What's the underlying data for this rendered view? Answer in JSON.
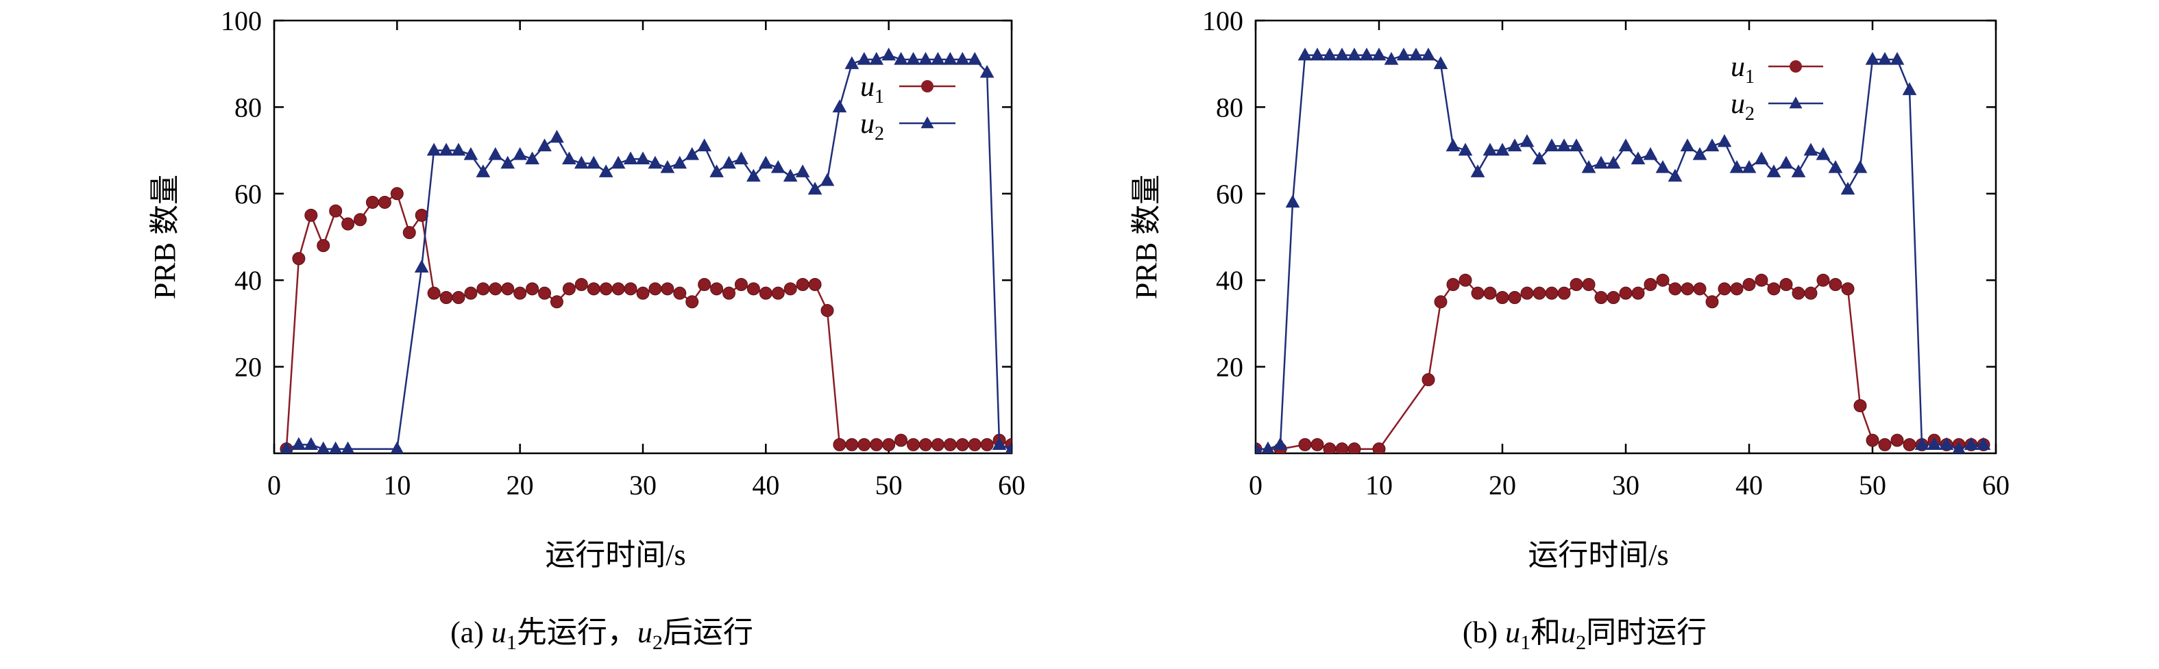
{
  "chart_data": [
    {
      "type": "line",
      "caption": {
        "prefix": "(a) ",
        "parts": [
          {
            "text": "u",
            "italic": true
          },
          {
            "text": "1",
            "sub": true
          },
          {
            "text": "先运行，"
          },
          {
            "text": "u",
            "italic": true
          },
          {
            "text": "2",
            "sub": true
          },
          {
            "text": "后运行"
          }
        ]
      },
      "xlabel": "运行时间/s",
      "ylabel": "PRB 数量",
      "xlim": [
        0,
        60
      ],
      "ylim": [
        0,
        100
      ],
      "xticks": [
        0,
        10,
        20,
        30,
        40,
        50,
        60
      ],
      "yticks": [
        20,
        40,
        60,
        80,
        100
      ],
      "legend_position": "top-left",
      "series": [
        {
          "name": "u1",
          "name_main": "u",
          "name_sub": "1",
          "color": "#8b1c24",
          "marker": "circle",
          "x": [
            1,
            2,
            3,
            4,
            5,
            6,
            7,
            8,
            9,
            10,
            11,
            12,
            13,
            14,
            15,
            16,
            17,
            18,
            19,
            20,
            21,
            22,
            23,
            24,
            25,
            26,
            27,
            28,
            29,
            30,
            31,
            32,
            33,
            34,
            35,
            36,
            37,
            38,
            39,
            40,
            41,
            42,
            43,
            44,
            45,
            46,
            47,
            48,
            49,
            50,
            51,
            52,
            53,
            54,
            55,
            56,
            57,
            58,
            59,
            60
          ],
          "y": [
            1,
            45,
            55,
            48,
            56,
            53,
            54,
            58,
            58,
            60,
            51,
            55,
            37,
            36,
            36,
            37,
            38,
            38,
            38,
            37,
            38,
            37,
            35,
            38,
            39,
            38,
            38,
            38,
            38,
            37,
            38,
            38,
            37,
            35,
            39,
            38,
            37,
            39,
            38,
            37,
            37,
            38,
            39,
            39,
            33,
            2,
            2,
            2,
            2,
            2,
            3,
            2,
            2,
            2,
            2,
            2,
            2,
            2,
            3,
            2
          ]
        },
        {
          "name": "u2",
          "name_main": "u",
          "name_sub": "2",
          "color": "#1f2e7a",
          "marker": "triangle",
          "x": [
            1,
            2,
            3,
            4,
            5,
            6,
            10,
            12,
            13,
            14,
            15,
            16,
            17,
            18,
            19,
            20,
            21,
            22,
            23,
            24,
            25,
            26,
            27,
            28,
            29,
            30,
            31,
            32,
            33,
            34,
            35,
            36,
            37,
            38,
            39,
            40,
            41,
            42,
            43,
            44,
            45,
            46,
            47,
            48,
            49,
            50,
            51,
            52,
            53,
            54,
            55,
            56,
            57,
            58,
            59,
            60
          ],
          "y": [
            1,
            2,
            2,
            1,
            1,
            1,
            1,
            43,
            70,
            70,
            70,
            69,
            65,
            69,
            67,
            69,
            68,
            71,
            73,
            68,
            67,
            67,
            65,
            67,
            68,
            68,
            67,
            66,
            67,
            69,
            71,
            65,
            67,
            68,
            64,
            67,
            66,
            64,
            65,
            61,
            63,
            80,
            90,
            91,
            91,
            92,
            91,
            91,
            91,
            91,
            91,
            91,
            91,
            88,
            2,
            1
          ]
        }
      ]
    },
    {
      "type": "line",
      "caption": {
        "prefix": "(b) ",
        "parts": [
          {
            "text": "u",
            "italic": true
          },
          {
            "text": "1",
            "sub": true
          },
          {
            "text": "和"
          },
          {
            "text": "u",
            "italic": true
          },
          {
            "text": "2",
            "sub": true
          },
          {
            "text": "同时运行"
          }
        ]
      },
      "xlabel": "运行时间/s",
      "ylabel": "PRB 数量",
      "xlim": [
        0,
        60
      ],
      "ylim": [
        0,
        100
      ],
      "xticks": [
        0,
        10,
        20,
        30,
        40,
        50,
        60
      ],
      "yticks": [
        20,
        40,
        60,
        80,
        100
      ],
      "legend_position": "top-right",
      "series": [
        {
          "name": "u1",
          "name_main": "u",
          "name_sub": "1",
          "color": "#8b1c24",
          "marker": "circle",
          "x": [
            0,
            2,
            4,
            5,
            6,
            7,
            8,
            10,
            14,
            15,
            16,
            17,
            18,
            19,
            20,
            21,
            22,
            23,
            24,
            25,
            26,
            27,
            28,
            29,
            30,
            31,
            32,
            33,
            34,
            35,
            36,
            37,
            38,
            39,
            40,
            41,
            42,
            43,
            44,
            45,
            46,
            47,
            48,
            49,
            50,
            51,
            52,
            53,
            54,
            55,
            56,
            57,
            58,
            59
          ],
          "y": [
            1,
            1,
            2,
            2,
            1,
            1,
            1,
            1,
            17,
            35,
            39,
            40,
            37,
            37,
            36,
            36,
            37,
            37,
            37,
            37,
            39,
            39,
            36,
            36,
            37,
            37,
            39,
            40,
            38,
            38,
            38,
            35,
            38,
            38,
            39,
            40,
            38,
            39,
            37,
            37,
            40,
            39,
            38,
            11,
            3,
            2,
            3,
            2,
            2,
            3,
            2,
            2,
            2,
            2
          ]
        },
        {
          "name": "u2",
          "name_main": "u",
          "name_sub": "2",
          "color": "#1f2e7a",
          "marker": "triangle",
          "x": [
            0,
            1,
            2,
            3,
            4,
            5,
            6,
            7,
            8,
            9,
            10,
            11,
            12,
            13,
            14,
            15,
            16,
            17,
            18,
            19,
            20,
            21,
            22,
            23,
            24,
            25,
            26,
            27,
            28,
            29,
            30,
            31,
            32,
            33,
            34,
            35,
            36,
            37,
            38,
            39,
            40,
            41,
            42,
            43,
            44,
            45,
            46,
            47,
            48,
            49,
            50,
            51,
            52,
            53,
            54,
            55,
            56,
            57,
            58,
            59
          ],
          "y": [
            1,
            1,
            2,
            58,
            92,
            92,
            92,
            92,
            92,
            92,
            92,
            91,
            92,
            92,
            92,
            90,
            71,
            70,
            65,
            70,
            70,
            71,
            72,
            68,
            71,
            71,
            71,
            66,
            67,
            67,
            71,
            68,
            69,
            66,
            64,
            71,
            69,
            71,
            72,
            66,
            66,
            68,
            65,
            67,
            65,
            70,
            69,
            66,
            61,
            66,
            91,
            91,
            91,
            84,
            2,
            2,
            2,
            1,
            2,
            2
          ]
        }
      ]
    }
  ]
}
